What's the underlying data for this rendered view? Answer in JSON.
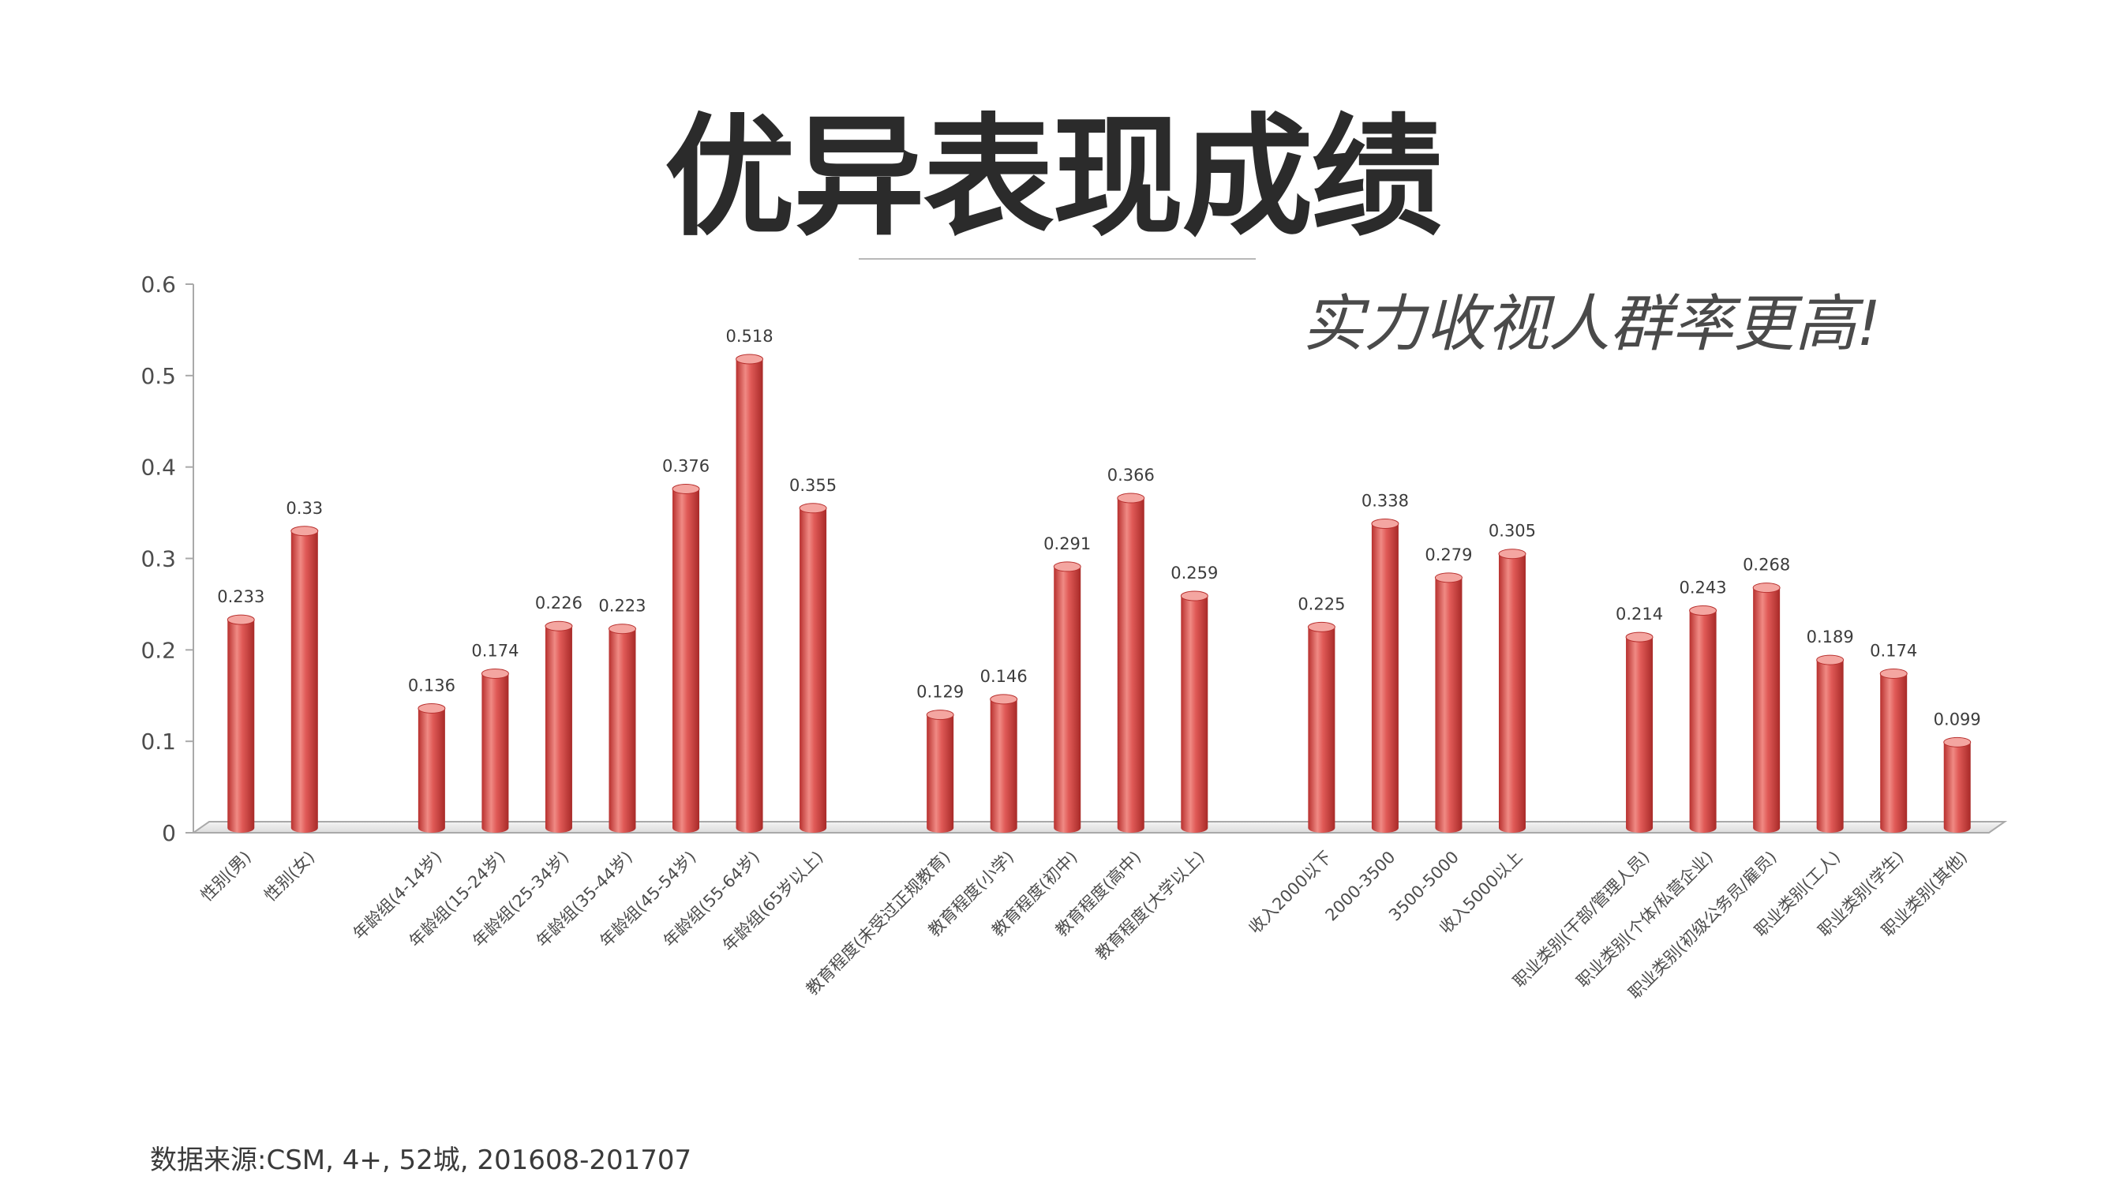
{
  "slide": {
    "title": "优异表现成绩",
    "subtitle": "实力收视人群率更高!",
    "source": "数据来源:CSM, 4+, 52城, 201608-201707"
  },
  "colors": {
    "bar": "#e05a57",
    "bar_dark": "#b8302e",
    "bar_light": "#f4a6a1",
    "axis": "#a9a9a9",
    "title": "#2b2b2b"
  },
  "chart_data": {
    "type": "bar",
    "title": "",
    "xlabel": "",
    "ylabel": "",
    "ylim": [
      0,
      0.6
    ],
    "yticks": [
      "0",
      "0.1",
      "0.2",
      "0.3",
      "0.4",
      "0.5",
      "0.6"
    ],
    "grid": false,
    "legend": "none",
    "style": "3d-cylinder",
    "categories": [
      "性别(男)",
      "性别(女)",
      "",
      "年龄组(4-14岁)",
      "年龄组(15-24岁)",
      "年龄组(25-34岁)",
      "年龄组(35-44岁)",
      "年龄组(45-54岁)",
      "年龄组(55-64岁)",
      "年龄组(65岁以上)",
      "",
      "教育程度(未受过正规教育)",
      "教育程度(小学)",
      "教育程度(初中)",
      "教育程度(高中)",
      "教育程度(大学以上)",
      "",
      "收入2000以下",
      "2000-3500",
      "3500-5000",
      "收入5000以上",
      "",
      "职业类别(干部/管理人员)",
      "职业类别(个体/私营企业)",
      "职业类别(初级公务员/雇员)",
      "职业类别(工人)",
      "职业类别(学生)",
      "职业类别(其他)"
    ],
    "values": [
      0.233,
      0.33,
      null,
      0.136,
      0.174,
      0.226,
      0.223,
      0.376,
      0.518,
      0.355,
      null,
      0.129,
      0.146,
      0.291,
      0.366,
      0.259,
      null,
      0.225,
      0.338,
      0.279,
      0.305,
      null,
      0.214,
      0.243,
      0.268,
      0.189,
      0.174,
      0.099
    ],
    "data_labels": [
      "0.233",
      "0.33",
      "",
      "0.136",
      "0.174",
      "0.226",
      "0.223",
      "0.376",
      "0.518",
      "0.355",
      "",
      "0.129",
      "0.146",
      "0.291",
      "0.366",
      "0.259",
      "",
      "0.225",
      "0.338",
      "0.279",
      "0.305",
      "",
      "0.214",
      "0.243",
      "0.268",
      "0.189",
      "0.174",
      "0.099"
    ]
  }
}
